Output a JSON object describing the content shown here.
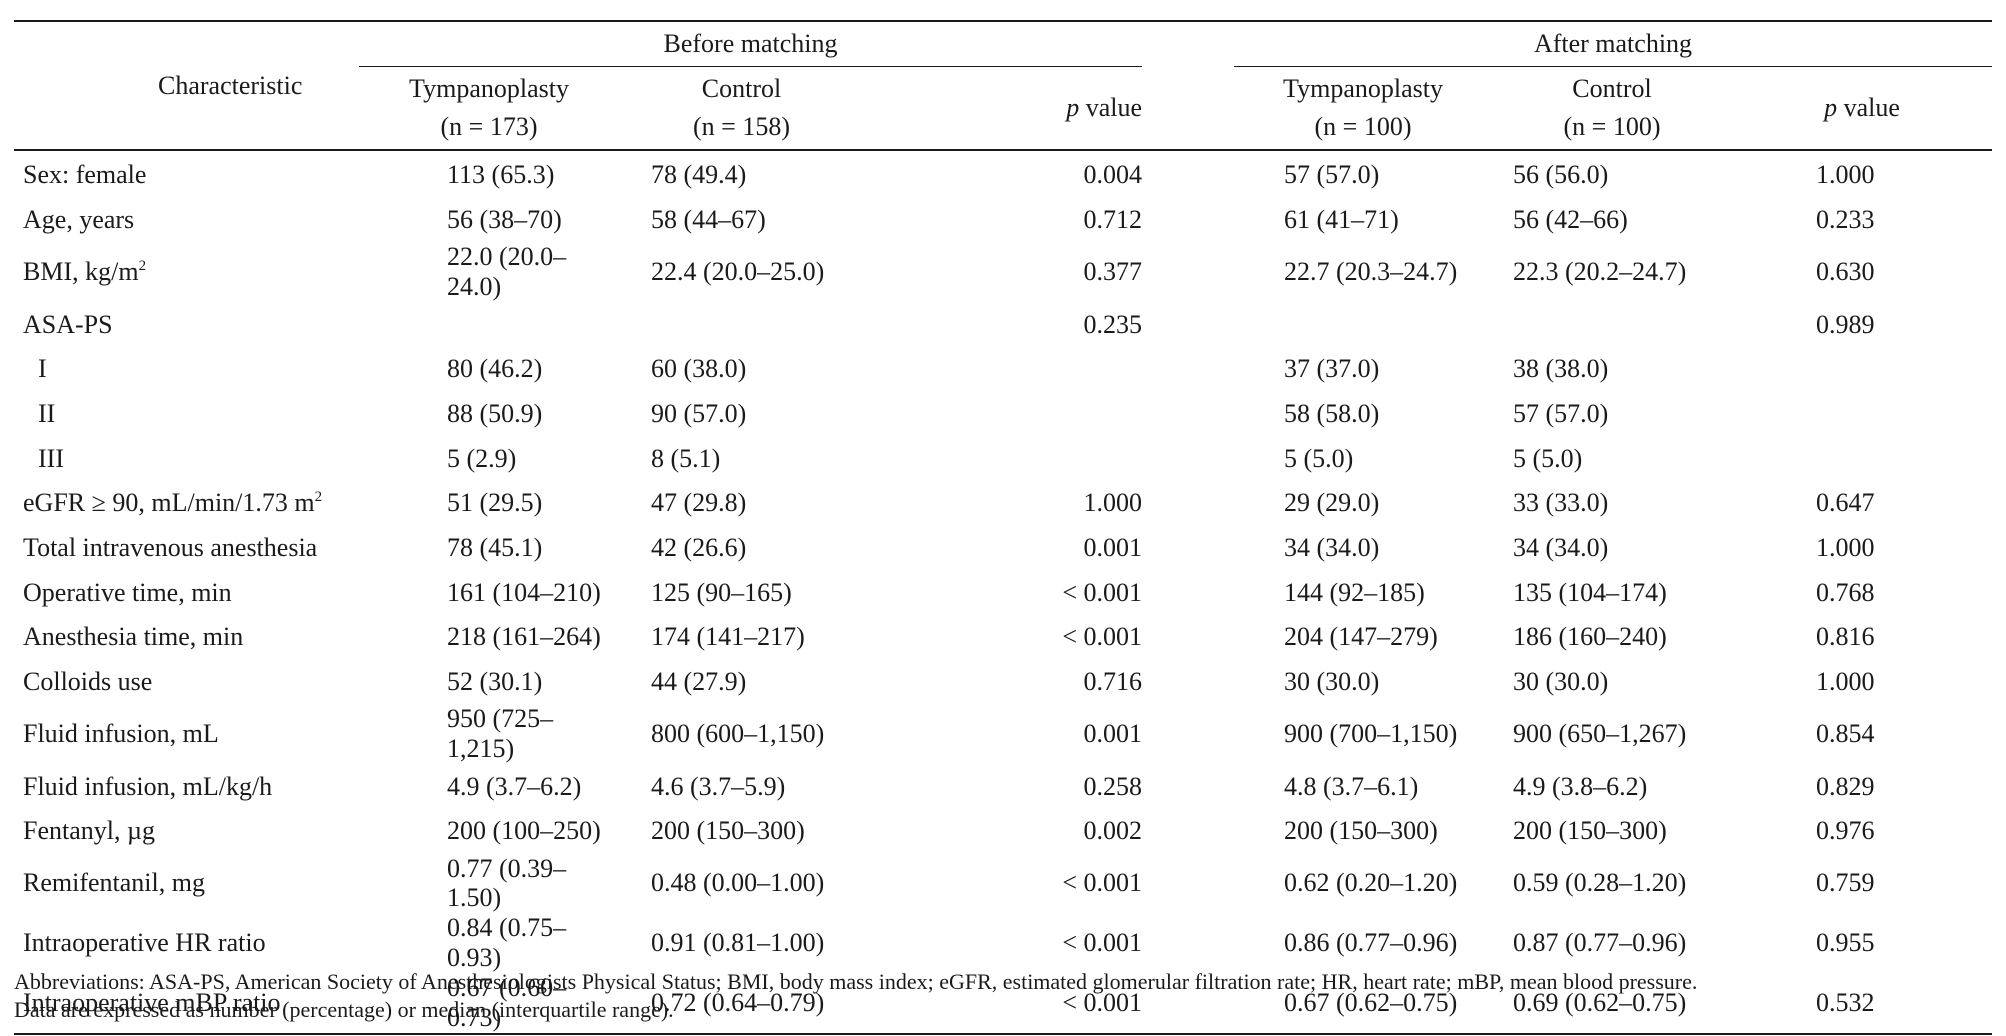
{
  "header": {
    "characteristic": "Characteristic",
    "before_matching": "Before matching",
    "after_matching": "After matching",
    "tympanoplasty": "Tympanoplasty",
    "control": "Control",
    "p_letter": "p",
    "p_value_word": "value",
    "before_tymp_n": "(n = 173)",
    "before_control_n": "(n = 158)",
    "after_tymp_n": "(n = 100)",
    "after_control_n": "(n = 100)"
  },
  "rows": [
    {
      "label": "Sex: female",
      "sup": "",
      "b_t": "113 (65.3)",
      "b_c": "78 (49.4)",
      "b_p": "0.004",
      "a_t": "57 (57.0)",
      "a_c": "56 (56.0)",
      "a_p": "1.000"
    },
    {
      "label": "Age, years",
      "sup": "",
      "b_t": "56 (38–70)",
      "b_c": "58 (44–67)",
      "b_p": "0.712",
      "a_t": "61 (41–71)",
      "a_c": "56 (42–66)",
      "a_p": "0.233"
    },
    {
      "label": "BMI, kg/m",
      "sup": "2",
      "b_t": "22.0 (20.0–24.0)",
      "b_c": "22.4 (20.0–25.0)",
      "b_p": "0.377",
      "a_t": "22.7 (20.3–24.7)",
      "a_c": "22.3 (20.2–24.7)",
      "a_p": "0.630"
    },
    {
      "label": "ASA-PS",
      "sup": "",
      "b_t": "",
      "b_c": "",
      "b_p": "0.235",
      "a_t": "",
      "a_c": "",
      "a_p": "0.989"
    },
    {
      "label": "I",
      "sup": "",
      "indent": true,
      "b_t": "80 (46.2)",
      "b_c": "60 (38.0)",
      "b_p": "",
      "a_t": "37 (37.0)",
      "a_c": "38 (38.0)",
      "a_p": ""
    },
    {
      "label": "II",
      "sup": "",
      "indent": true,
      "b_t": "88 (50.9)",
      "b_c": "90 (57.0)",
      "b_p": "",
      "a_t": "58 (58.0)",
      "a_c": "57 (57.0)",
      "a_p": ""
    },
    {
      "label": "III",
      "sup": "",
      "indent": true,
      "b_t": "5 (2.9)",
      "b_c": "8 (5.1)",
      "b_p": "",
      "a_t": "5 (5.0)",
      "a_c": "5 (5.0)",
      "a_p": ""
    },
    {
      "label": "eGFR ≥ 90, mL/min/1.73 m",
      "sup": "2",
      "b_t": "51 (29.5)",
      "b_c": "47 (29.8)",
      "b_p": "1.000",
      "a_t": "29 (29.0)",
      "a_c": "33 (33.0)",
      "a_p": "0.647"
    },
    {
      "label": "Total intravenous anesthesia",
      "sup": "",
      "b_t": "78 (45.1)",
      "b_c": "42 (26.6)",
      "b_p": "0.001",
      "a_t": "34 (34.0)",
      "a_c": "34 (34.0)",
      "a_p": "1.000"
    },
    {
      "label": "Operative time, min",
      "sup": "",
      "b_t": "161 (104–210)",
      "b_c": "125 (90–165)",
      "b_p": "< 0.001",
      "a_t": "144 (92–185)",
      "a_c": "135 (104–174)",
      "a_p": "0.768"
    },
    {
      "label": "Anesthesia time, min",
      "sup": "",
      "b_t": "218 (161–264)",
      "b_c": "174 (141–217)",
      "b_p": "< 0.001",
      "a_t": "204 (147–279)",
      "a_c": "186 (160–240)",
      "a_p": "0.816"
    },
    {
      "label": "Colloids use",
      "sup": "",
      "b_t": "52 (30.1)",
      "b_c": "44 (27.9)",
      "b_p": "0.716",
      "a_t": "30 (30.0)",
      "a_c": "30 (30.0)",
      "a_p": "1.000"
    },
    {
      "label": "Fluid infusion, mL",
      "sup": "",
      "b_t": "950 (725–1,215)",
      "b_c": "800 (600–1,150)",
      "b_p": "0.001",
      "a_t": "900 (700–1,150)",
      "a_c": "900 (650–1,267)",
      "a_p": "0.854"
    },
    {
      "label": "Fluid infusion, mL/kg/h",
      "sup": "",
      "b_t": "4.9 (3.7–6.2)",
      "b_c": "4.6 (3.7–5.9)",
      "b_p": "0.258",
      "a_t": "4.8 (3.7–6.1)",
      "a_c": "4.9 (3.8–6.2)",
      "a_p": "0.829"
    },
    {
      "label": "Fentanyl, µg",
      "sup": "",
      "b_t": "200 (100–250)",
      "b_c": "200 (150–300)",
      "b_p": "0.002",
      "a_t": "200 (150–300)",
      "a_c": "200 (150–300)",
      "a_p": "0.976"
    },
    {
      "label": "Remifentanil, mg",
      "sup": "",
      "b_t": "0.77 (0.39–1.50)",
      "b_c": "0.48 (0.00–1.00)",
      "b_p": "< 0.001",
      "a_t": "0.62 (0.20–1.20)",
      "a_c": "0.59 (0.28–1.20)",
      "a_p": "0.759"
    },
    {
      "label": "Intraoperative HR ratio",
      "sup": "",
      "b_t": "0.84 (0.75–0.93)",
      "b_c": "0.91 (0.81–1.00)",
      "b_p": "< 0.001",
      "a_t": "0.86 (0.77–0.96)",
      "a_c": "0.87 (0.77–0.96)",
      "a_p": "0.955"
    },
    {
      "label": "Intraoperative mBP ratio",
      "sup": "",
      "b_t": "0.67 (0.60–0.73)",
      "b_c": "0.72 (0.64–0.79)",
      "b_p": "< 0.001",
      "a_t": "0.67 (0.62–0.75)",
      "a_c": "0.69 (0.62–0.75)",
      "a_p": "0.532"
    }
  ],
  "notes": {
    "abbreviations": "Abbreviations: ASA-PS, American Society of Anesthesiologists Physical Status; BMI, body mass index; eGFR, estimated glomerular filtration rate; HR, heart rate; mBP, mean blood pressure.",
    "data_expression": "Data are expressed as number (percentage) or median (interquartile range)."
  }
}
